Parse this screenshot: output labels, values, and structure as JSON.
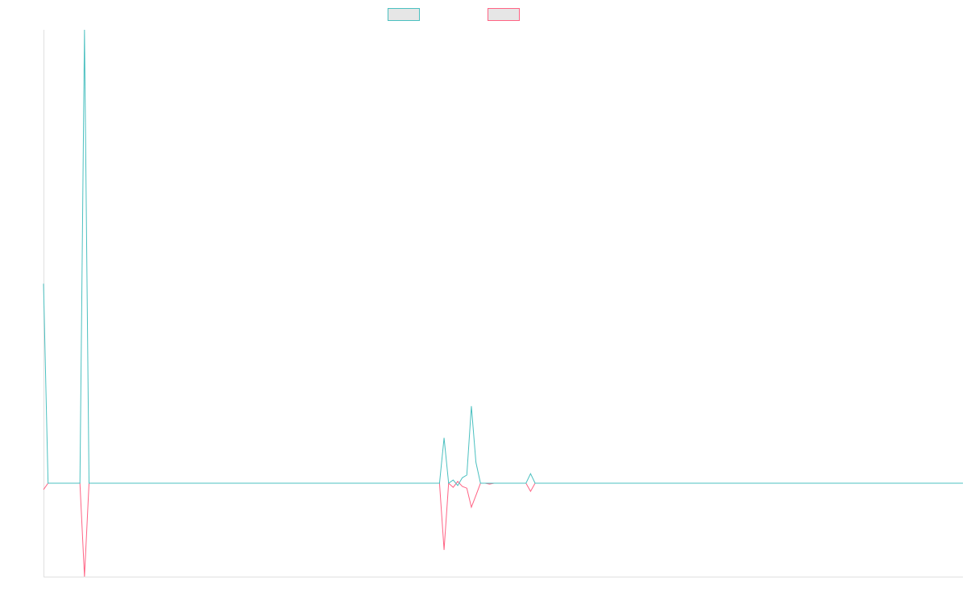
{
  "chart_data": {
    "type": "line",
    "categories": [
      null,
      null,
      null,
      null,
      null,
      null,
      null,
      null,
      null,
      null,
      null,
      null,
      null,
      null,
      null,
      null,
      null,
      null,
      null,
      null,
      null,
      null,
      null,
      null,
      null,
      null,
      null,
      null,
      null,
      null,
      null,
      null,
      null,
      null,
      null,
      null,
      null,
      null,
      null,
      null,
      null,
      null,
      null,
      null,
      null,
      null,
      null,
      null,
      null,
      null,
      null,
      null,
      null,
      null,
      null,
      null,
      null,
      null,
      null,
      null,
      null,
      null,
      null,
      null,
      null,
      null,
      null,
      null,
      null,
      null,
      null,
      null,
      null,
      null,
      null,
      null,
      null,
      null,
      null,
      null,
      null,
      null,
      null,
      null,
      null,
      null,
      null,
      null,
      null,
      null,
      null,
      null,
      null,
      null,
      null,
      null,
      null,
      null,
      null,
      null,
      null,
      null,
      null,
      null,
      null,
      null,
      null,
      null,
      null,
      null,
      null,
      null,
      null,
      null,
      null,
      null,
      null,
      null,
      null,
      null,
      null,
      null,
      null,
      null,
      null,
      null,
      null,
      null,
      null,
      null,
      null,
      null,
      null,
      null,
      null,
      null,
      null,
      null,
      null,
      null,
      null,
      null,
      null,
      null,
      null,
      null,
      null,
      null,
      null,
      null,
      null,
      null,
      null,
      null,
      null,
      null,
      null,
      null,
      null,
      null,
      null,
      null,
      null,
      null,
      null,
      null,
      null,
      null,
      null,
      null,
      null,
      null,
      null,
      null,
      null,
      null,
      null,
      null,
      null,
      null,
      null,
      null,
      null,
      null,
      null,
      null,
      null,
      null,
      null,
      null,
      null,
      null,
      null,
      null,
      null,
      null,
      null,
      null,
      null,
      null,
      null,
      null,
      null
    ],
    "series": [
      {
        "color": "#4bc0c0",
        "values": [
          44,
          0,
          0,
          0,
          0,
          0,
          0,
          0,
          0,
          100,
          0,
          0,
          0,
          0,
          0,
          0,
          0,
          0,
          0,
          0,
          0,
          0,
          0,
          0,
          0,
          0,
          0,
          0,
          0,
          0,
          0,
          0,
          0,
          0,
          0,
          0,
          0,
          0,
          0,
          0,
          0,
          0,
          0,
          0,
          0,
          0,
          0,
          0,
          0,
          0,
          0,
          0,
          0,
          0,
          0,
          0,
          0,
          0,
          0,
          0,
          0,
          0,
          0,
          0,
          0,
          0,
          0,
          0,
          0,
          0,
          0,
          0,
          0,
          0,
          0,
          0,
          0,
          0,
          0,
          0,
          0,
          0,
          0,
          0,
          0,
          0,
          0,
          0,
          10,
          0,
          0.7,
          -0.5,
          1.2,
          1.8,
          17,
          4.6,
          0,
          0,
          0,
          0,
          0,
          0,
          0,
          0,
          0,
          0,
          0,
          2.1,
          0,
          0,
          0,
          0,
          0,
          0,
          0,
          0,
          0,
          0,
          0,
          0,
          0,
          0,
          0,
          0,
          0,
          0,
          0,
          0,
          0,
          0,
          0,
          0,
          0,
          0,
          0,
          0,
          0,
          0,
          0,
          0,
          0,
          0,
          0,
          0,
          0,
          0,
          0,
          0,
          0,
          0,
          0,
          0,
          0,
          0,
          0,
          0,
          0,
          0,
          0,
          0,
          0,
          0,
          0,
          0,
          0,
          0,
          0,
          0,
          0,
          0,
          0,
          0,
          0,
          0,
          0,
          0,
          0,
          0,
          0,
          0,
          0,
          0,
          0,
          0,
          0,
          0,
          0,
          0,
          0,
          0,
          0,
          0,
          0,
          0,
          0,
          0,
          0,
          0,
          0,
          0,
          0,
          0,
          0
        ]
      },
      {
        "color": "#ff6384",
        "values": [
          -1.4,
          0,
          0,
          0,
          0,
          0,
          0,
          0,
          0,
          -20.6,
          0,
          0,
          0,
          0,
          0,
          0,
          0,
          0,
          0,
          0,
          0,
          0,
          0,
          0,
          0,
          0,
          0,
          0,
          0,
          0,
          0,
          0,
          0,
          0,
          0,
          0,
          0,
          0,
          0,
          0,
          0,
          0,
          0,
          0,
          0,
          0,
          0,
          0,
          0,
          0,
          0,
          0,
          0,
          0,
          0,
          0,
          0,
          0,
          0,
          0,
          0,
          0,
          0,
          0,
          0,
          0,
          0,
          0,
          0,
          0,
          0,
          0,
          0,
          0,
          0,
          0,
          0,
          0,
          0,
          0,
          0,
          0,
          0,
          0,
          0,
          0,
          0,
          0,
          -14.7,
          0,
          -0.9,
          0.4,
          -0.7,
          -1.1,
          -5.3,
          -2.7,
          0,
          0,
          -0.2,
          0,
          0,
          0,
          0,
          0,
          0,
          0,
          0,
          -1.8,
          0,
          0,
          0,
          0,
          0,
          0,
          0,
          0,
          0,
          0,
          0,
          0,
          0,
          0,
          0,
          0,
          0,
          0,
          0,
          0,
          0,
          0,
          0,
          0,
          0,
          0,
          0,
          0,
          0,
          0,
          0,
          0,
          0,
          0,
          0,
          0,
          0,
          0,
          0,
          0,
          0,
          0,
          0,
          0,
          0,
          0,
          0,
          0,
          0,
          0,
          0,
          0,
          0,
          0,
          0,
          0,
          0,
          0,
          0,
          0,
          0,
          0,
          0,
          0,
          0,
          0,
          0,
          0,
          0,
          0,
          0,
          0,
          0,
          0,
          0,
          0,
          0,
          0,
          0,
          0,
          0,
          0,
          0,
          0,
          0,
          0,
          0,
          0,
          0,
          0,
          0,
          0,
          0,
          0,
          0
        ]
      }
    ],
    "ylim": [
      -20.6,
      100
    ],
    "grid": false
  }
}
